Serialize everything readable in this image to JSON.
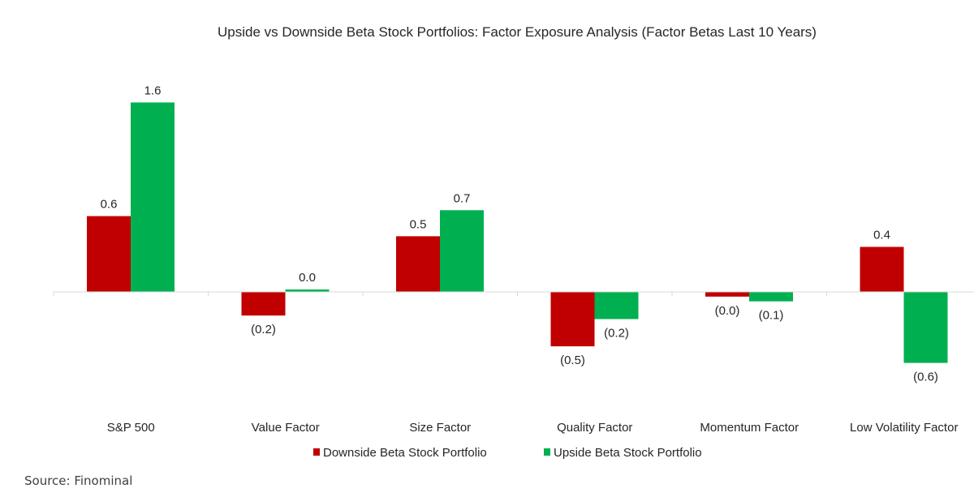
{
  "chart_data": {
    "type": "bar",
    "title": "Upside vs Downside Beta Stock Portfolios: Factor Exposure Analysis (Factor Betas Last 10 Years)",
    "xlabel": "",
    "ylabel": "",
    "ylim": [
      -0.8,
      1.7
    ],
    "grid": false,
    "legend_position": "bottom",
    "categories": [
      "S&P 500",
      "Value Factor",
      "Size Factor",
      "Quality Factor",
      "Momentum Factor",
      "Low Volatility Factor"
    ],
    "series": [
      {
        "name": "Downside Beta Stock Portfolio",
        "color": "#C00000",
        "values": [
          0.64,
          -0.2,
          0.47,
          -0.46,
          -0.04,
          0.38
        ],
        "labels": [
          "0.6",
          "(0.2)",
          "0.5",
          "(0.5)",
          "(0.0)",
          "0.4"
        ]
      },
      {
        "name": "Upside Beta Stock Portfolio",
        "color": "#00B050",
        "values": [
          1.6,
          0.02,
          0.69,
          -0.23,
          -0.08,
          -0.6
        ],
        "labels": [
          "1.6",
          "0.0",
          "0.7",
          "(0.2)",
          "(0.1)",
          "(0.6)"
        ]
      }
    ]
  },
  "source": "Source: Finominal"
}
